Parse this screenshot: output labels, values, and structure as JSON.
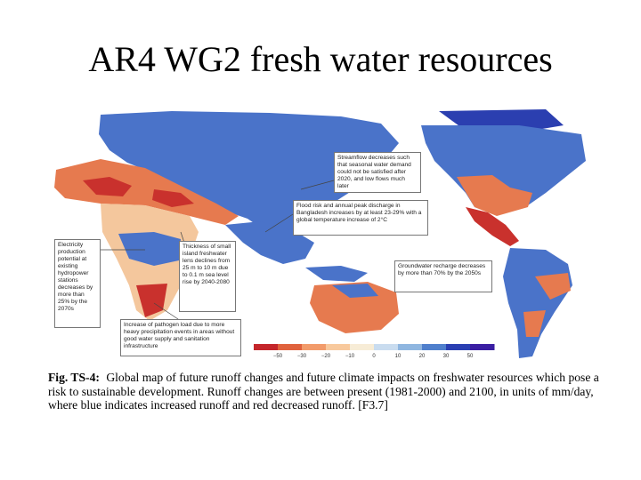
{
  "slide": {
    "title": "AR4 WG2 fresh water resources"
  },
  "figure": {
    "callouts": [
      {
        "id": "north-america",
        "text": "Streamflow decreases such that seasonal water demand could not be satisfied after 2020, and low flows much later"
      },
      {
        "id": "asia",
        "text": "Flood risk and annual peak discharge in Bangladesh increases by at least 23-29% with a global temperature increase of 2°C"
      },
      {
        "id": "africa",
        "text": "Electricity production potential at existing hydropower stations decreases by more than 25% by the 2070s"
      },
      {
        "id": "islands",
        "text": "Thickness of small island freshwater lens declines from 25 m to 10 m due to 0.1 m sea level rise by 2040-2080"
      },
      {
        "id": "south-america",
        "text": "Groundwater recharge decreases by more than 70% by the 2050s"
      },
      {
        "id": "health",
        "text": "Increase of pathogen load due to more heavy precipitation events in areas without good water supply and sanitation infrastructure"
      }
    ],
    "legend": {
      "ticks": [
        "−50",
        "−30",
        "−20",
        "−10",
        "0",
        "10",
        "20",
        "30",
        "50"
      ],
      "colors": [
        "#c4262b",
        "#e0623d",
        "#f29b6a",
        "#f8c99d",
        "#f7ecd6",
        "#c9dcef",
        "#8fb6e0",
        "#4f7fcc",
        "#2a3fb2",
        "#3a1ea3"
      ]
    },
    "palette": {
      "ocean": "#ffffff",
      "wet": "#4a73c9",
      "very_wet": "#2b3fb0",
      "neutral": "#d8e3f1",
      "dry": "#e67a4f",
      "very_dry": "#c9312d",
      "tan": "#f4c79d"
    }
  },
  "caption": {
    "label": "Fig. TS-4:",
    "text": "Global map of future runoff changes and future climate impacts on freshwater resources which pose a risk to sustainable development. Runoff changes are between present (1981-2000) and 2100, in units of mm/day, where blue indicates increased runoff and red decreased runoff. [F3.7]"
  }
}
